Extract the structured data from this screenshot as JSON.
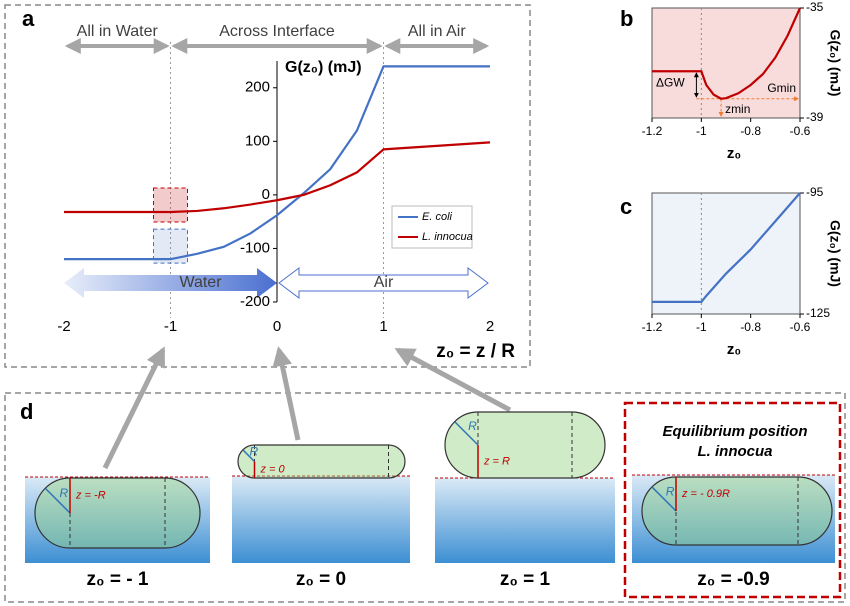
{
  "chart_data": [
    {
      "type": "line",
      "panel_label": "a",
      "y_label": "G(z₀) (mJ)",
      "x_label": "z₀ = z / R",
      "annotations": [
        "All in Water",
        "Across Interface",
        "All in Air",
        "Water",
        "Air"
      ],
      "xlim": [
        -2,
        2
      ],
      "ylim": [
        -200,
        250
      ],
      "xticks": [
        -2,
        -1,
        0,
        1,
        2
      ],
      "yticks": [
        -200,
        -100,
        0,
        100,
        200
      ],
      "series": [
        {
          "name": "E. coli",
          "color": "#4472c4",
          "x": [
            -2,
            -1,
            -0.75,
            -0.5,
            -0.25,
            0,
            0.25,
            0.5,
            0.75,
            1,
            2
          ],
          "values": [
            -120,
            -120,
            -110,
            -97,
            -72,
            -38,
            3,
            48,
            120,
            240,
            240
          ]
        },
        {
          "name": "L. innocua",
          "color": "#c00000",
          "x": [
            -2,
            -1,
            -0.75,
            -0.5,
            -0.25,
            0,
            0.25,
            0.5,
            0.75,
            1,
            2
          ],
          "values": [
            -32,
            -32,
            -30,
            -25,
            -18,
            -10,
            0,
            18,
            42,
            85,
            98
          ]
        }
      ]
    },
    {
      "type": "line",
      "panel_label": "b",
      "y_label": "G(z₀) (mJ)",
      "x_label": "z₀",
      "annotations": [
        "ΔGW",
        "Gmin",
        "zmin"
      ],
      "xlim": [
        -1.2,
        -0.6
      ],
      "ylim": [
        -39,
        -35
      ],
      "xticks": [
        -1.2,
        -1,
        -0.8,
        -0.6
      ],
      "yticks": [
        -39,
        -35
      ],
      "series": [
        {
          "color": "#c00000",
          "x": [
            -1.2,
            -1,
            -0.98,
            -0.95,
            -0.92,
            -0.9,
            -0.85,
            -0.8,
            -0.75,
            -0.7,
            -0.65,
            -0.6
          ],
          "values": [
            -37.3,
            -37.3,
            -37.8,
            -38.15,
            -38.3,
            -38.28,
            -38.1,
            -37.8,
            -37.4,
            -36.8,
            -36,
            -35
          ]
        }
      ]
    },
    {
      "type": "line",
      "panel_label": "c",
      "y_label": "G(z₀) (mJ)",
      "x_label": "z₀",
      "xlim": [
        -1.2,
        -0.6
      ],
      "ylim": [
        -125,
        -95
      ],
      "xticks": [
        -1.2,
        -1,
        -0.8,
        -0.6
      ],
      "yticks": [
        -125,
        -95
      ],
      "series": [
        {
          "color": "#4472c4",
          "x": [
            -1.2,
            -1,
            -0.98,
            -0.9,
            -0.8,
            -0.7,
            -0.6
          ],
          "values": [
            -122,
            -122,
            -120.5,
            -115,
            -109,
            -102,
            -95
          ]
        }
      ]
    }
  ],
  "panel_d": {
    "label": "d",
    "equilibrium": [
      "Equilibrium position",
      "L. innocua"
    ],
    "scenes": [
      {
        "caption": "z₀ = - 1",
        "z_label": "z = -R",
        "r_label": "R"
      },
      {
        "caption": "z₀ = 0",
        "z_label": "z = 0",
        "r_label": "R"
      },
      {
        "caption": "z₀ = 1",
        "z_label": "z = R",
        "r_label": "R"
      },
      {
        "caption": "z₀ = -0.9",
        "z_label": "z = - 0.9R",
        "r_label": "R"
      }
    ]
  }
}
